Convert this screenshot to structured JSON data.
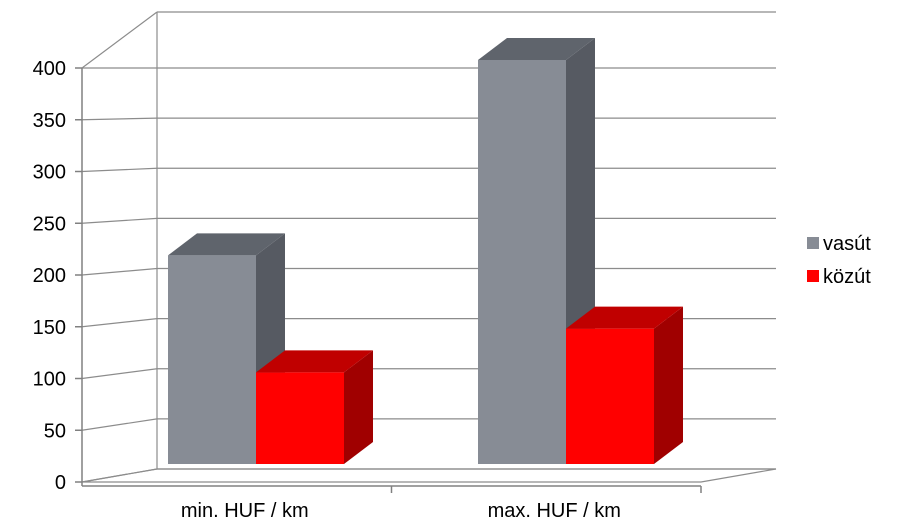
{
  "chart_data": {
    "type": "bar",
    "style": "3d-clustered-column",
    "categories": [
      "min. HUF / km",
      "max. HUF / km"
    ],
    "series": [
      {
        "name": "vasút",
        "values": [
          205,
          397
        ],
        "color": "#878c95",
        "side_color": "#565a62",
        "top_color": "#5f646c"
      },
      {
        "name": "közút",
        "values": [
          90,
          133
        ],
        "color": "#ff0000",
        "side_color": "#a00000",
        "top_color": "#c00000"
      }
    ],
    "ylim": [
      0,
      400
    ],
    "yticks": [
      "0",
      "50",
      "100",
      "150",
      "200",
      "250",
      "300",
      "350",
      "400"
    ],
    "grid": true,
    "legend_position": "right",
    "axis_color": "#808080",
    "grid_color": "#8c8c8c"
  }
}
